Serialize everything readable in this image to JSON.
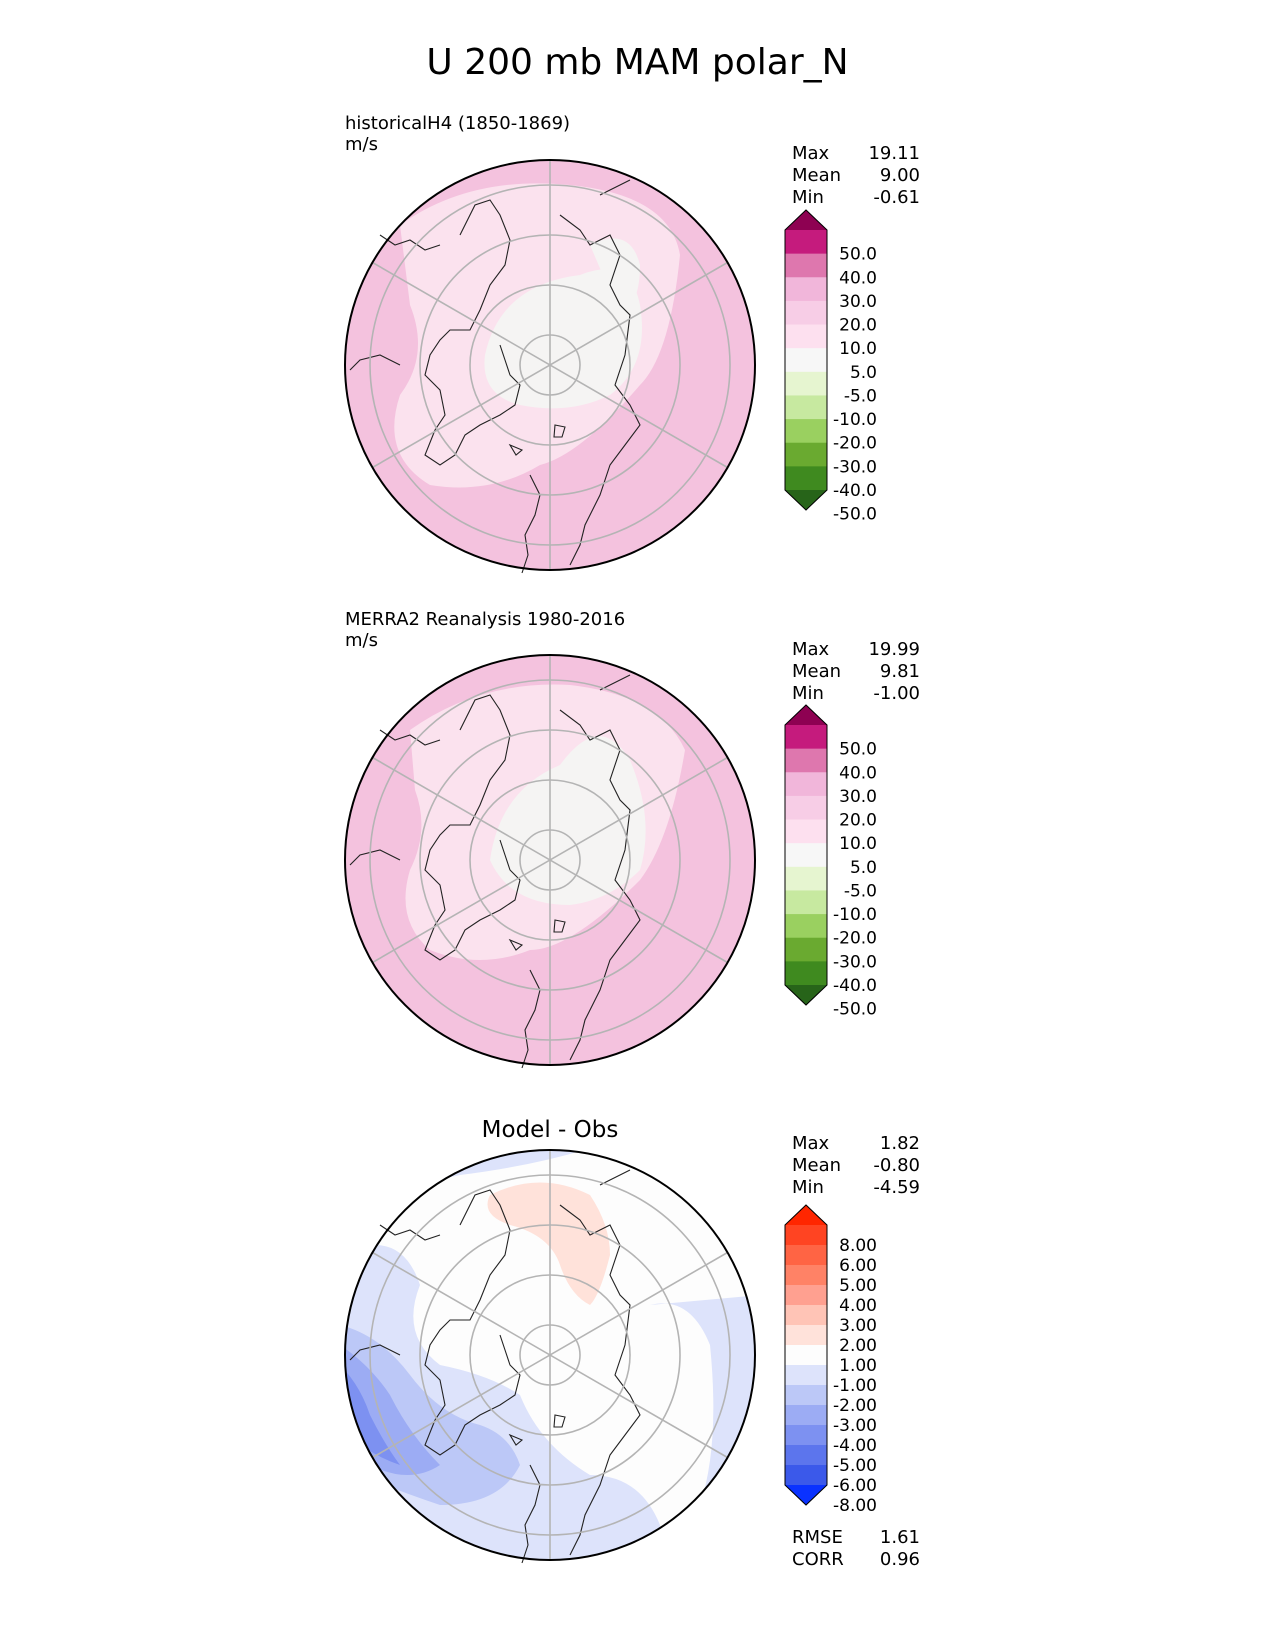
{
  "figure_title": "U 200 mb MAM polar_N",
  "panels": [
    {
      "id": "test",
      "title": "historicalH4 (1850-1869)",
      "units": "m/s",
      "stats": [
        {
          "label": "Max",
          "value": "19.11"
        },
        {
          "label": "Mean",
          "value": "9.00"
        },
        {
          "label": "Min",
          "value": "-0.61"
        }
      ]
    },
    {
      "id": "ref",
      "title": "MERRA2 Reanalysis 1980-2016",
      "units": "m/s",
      "stats": [
        {
          "label": "Max",
          "value": "19.99"
        },
        {
          "label": "Mean",
          "value": "9.81"
        },
        {
          "label": "Min",
          "value": "-1.00"
        }
      ]
    },
    {
      "id": "diff",
      "title": "Model - Obs",
      "stats": [
        {
          "label": "Max",
          "value": "1.82"
        },
        {
          "label": "Mean",
          "value": "-0.80"
        },
        {
          "label": "Min",
          "value": "-4.59"
        }
      ],
      "metrics": [
        {
          "label": "RMSE",
          "value": "1.61"
        },
        {
          "label": "CORR",
          "value": "0.96"
        }
      ]
    }
  ],
  "chart_data": [
    {
      "type": "heatmap",
      "projection": "north-polar-stereographic",
      "title": "historicalH4 (1850-1869)",
      "units": "m/s",
      "variable": "U 200 mb MAM",
      "colorbar": {
        "levels": [
          "50.0",
          "40.0",
          "30.0",
          "20.0",
          "10.0",
          "5.0",
          "-5.0",
          "-10.0",
          "-20.0",
          "-30.0",
          "-40.0",
          "-50.0"
        ],
        "colors": [
          "#8e0152",
          "#c51b7d",
          "#de77ae",
          "#f1b6da",
          "#f7cde6",
          "#fde0ef",
          "#f7f7f7",
          "#e6f5d0",
          "#c7e9a0",
          "#9ad060",
          "#6aaa30",
          "#3f8a1f",
          "#276419"
        ],
        "extend": "both"
      },
      "stats": {
        "max": 19.11,
        "mean": 9.0,
        "min": -0.61
      }
    },
    {
      "type": "heatmap",
      "projection": "north-polar-stereographic",
      "title": "MERRA2 Reanalysis 1980-2016",
      "units": "m/s",
      "variable": "U 200 mb MAM",
      "colorbar": {
        "levels": [
          "50.0",
          "40.0",
          "30.0",
          "20.0",
          "10.0",
          "5.0",
          "-5.0",
          "-10.0",
          "-20.0",
          "-30.0",
          "-40.0",
          "-50.0"
        ],
        "colors": [
          "#8e0152",
          "#c51b7d",
          "#de77ae",
          "#f1b6da",
          "#f7cde6",
          "#fde0ef",
          "#f7f7f7",
          "#e6f5d0",
          "#c7e9a0",
          "#9ad060",
          "#6aaa30",
          "#3f8a1f",
          "#276419"
        ],
        "extend": "both"
      },
      "stats": {
        "max": 19.99,
        "mean": 9.81,
        "min": -1.0
      }
    },
    {
      "type": "heatmap",
      "projection": "north-polar-stereographic",
      "title": "Model - Obs",
      "variable": "U 200 mb MAM difference",
      "colorbar": {
        "levels": [
          "8.00",
          "6.00",
          "5.00",
          "4.00",
          "3.00",
          "2.00",
          "1.00",
          "-1.00",
          "-2.00",
          "-3.00",
          "-4.00",
          "-5.00",
          "-6.00",
          "-8.00"
        ],
        "colors": [
          "#ff2600",
          "#ff4422",
          "#ff6444",
          "#ff8266",
          "#ffa090",
          "#ffc4b6",
          "#ffe2da",
          "#fdfdfd",
          "#dde3fb",
          "#bcc8f7",
          "#9cacf4",
          "#7d91f1",
          "#5c75ed",
          "#3b59ea",
          "#0a32ff"
        ],
        "extend": "both"
      },
      "stats": {
        "max": 1.82,
        "mean": -0.8,
        "min": -4.59
      },
      "rmse": 1.61,
      "corr": 0.96
    }
  ]
}
